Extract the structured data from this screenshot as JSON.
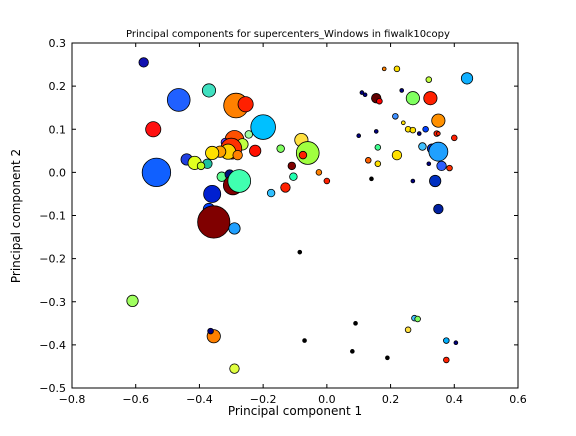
{
  "chart_data": {
    "type": "scatter",
    "title": "Principal components for supercenters_Windows in fiwalk10copy",
    "xlabel": "Principal component 1",
    "ylabel": "Principal component 2",
    "xlim": [
      -0.8,
      0.6
    ],
    "ylim": [
      -0.5,
      0.3
    ],
    "xticks": [
      "−0.8",
      "−0.6",
      "−0.4",
      "−0.2",
      "0.0",
      "0.2",
      "0.4",
      "0.6"
    ],
    "yticks": [
      "−0.5",
      "−0.4",
      "−0.3",
      "−0.2",
      "−0.1",
      "0.0",
      "0.1",
      "0.2",
      "0.3"
    ],
    "grid": false,
    "legend": "none",
    "points": [
      {
        "x": -0.575,
        "y": 0.255,
        "size": 5,
        "color": "#1010b0"
      },
      {
        "x": -0.465,
        "y": 0.168,
        "size": 12,
        "color": "#2060ff"
      },
      {
        "x": -0.37,
        "y": 0.19,
        "size": 7,
        "color": "#40e0c0"
      },
      {
        "x": -0.285,
        "y": 0.155,
        "size": 13,
        "color": "#ff8000"
      },
      {
        "x": -0.255,
        "y": 0.158,
        "size": 8,
        "color": "#ff2000"
      },
      {
        "x": -0.545,
        "y": 0.1,
        "size": 8,
        "color": "#ff1010"
      },
      {
        "x": -0.2,
        "y": 0.105,
        "size": 13,
        "color": "#00c0ff"
      },
      {
        "x": -0.245,
        "y": 0.088,
        "size": 4,
        "color": "#a0ffa0"
      },
      {
        "x": -0.29,
        "y": 0.075,
        "size": 10,
        "color": "#ff5000"
      },
      {
        "x": -0.32,
        "y": 0.07,
        "size": 4,
        "color": "#6040ff"
      },
      {
        "x": -0.265,
        "y": 0.065,
        "size": 6,
        "color": "#c0ff40"
      },
      {
        "x": -0.3,
        "y": 0.055,
        "size": 11,
        "color": "#ff3000"
      },
      {
        "x": -0.31,
        "y": 0.048,
        "size": 8,
        "color": "#ffd000"
      },
      {
        "x": -0.335,
        "y": 0.048,
        "size": 6,
        "color": "#ffa000"
      },
      {
        "x": -0.36,
        "y": 0.045,
        "size": 7,
        "color": "#ffe000"
      },
      {
        "x": -0.28,
        "y": 0.04,
        "size": 5,
        "color": "#ff8000"
      },
      {
        "x": -0.225,
        "y": 0.05,
        "size": 6,
        "color": "#ff1000"
      },
      {
        "x": -0.44,
        "y": 0.03,
        "size": 6,
        "color": "#2040e0"
      },
      {
        "x": -0.415,
        "y": 0.022,
        "size": 7,
        "color": "#e0ff20"
      },
      {
        "x": -0.375,
        "y": 0.02,
        "size": 5,
        "color": "#20c0a0"
      },
      {
        "x": -0.395,
        "y": 0.015,
        "size": 4,
        "color": "#c0ff20"
      },
      {
        "x": -0.535,
        "y": 0.0,
        "size": 15,
        "color": "#1060ff"
      },
      {
        "x": -0.33,
        "y": -0.01,
        "size": 5,
        "color": "#60ff90"
      },
      {
        "x": -0.305,
        "y": -0.005,
        "size": 5,
        "color": "#001080"
      },
      {
        "x": -0.295,
        "y": -0.03,
        "size": 10,
        "color": "#800000"
      },
      {
        "x": -0.275,
        "y": -0.02,
        "size": 12,
        "color": "#40ffb0"
      },
      {
        "x": -0.36,
        "y": -0.05,
        "size": 9,
        "color": "#0020d0"
      },
      {
        "x": -0.37,
        "y": -0.085,
        "size": 6,
        "color": "#0040ff"
      },
      {
        "x": -0.355,
        "y": -0.115,
        "size": 17,
        "color": "#800000"
      },
      {
        "x": -0.29,
        "y": -0.13,
        "size": 6,
        "color": "#20a0ff"
      },
      {
        "x": -0.08,
        "y": 0.075,
        "size": 7,
        "color": "#ffe040"
      },
      {
        "x": -0.06,
        "y": 0.045,
        "size": 12,
        "color": "#a0ff40"
      },
      {
        "x": -0.075,
        "y": 0.04,
        "size": 4,
        "color": "#ff2000"
      },
      {
        "x": -0.145,
        "y": 0.055,
        "size": 4,
        "color": "#80ff60"
      },
      {
        "x": -0.11,
        "y": 0.015,
        "size": 4,
        "color": "#800000"
      },
      {
        "x": -0.105,
        "y": -0.01,
        "size": 4,
        "color": "#20ffb0"
      },
      {
        "x": -0.13,
        "y": -0.035,
        "size": 5,
        "color": "#ff2000"
      },
      {
        "x": -0.175,
        "y": -0.048,
        "size": 4,
        "color": "#30c0ff"
      },
      {
        "x": -0.025,
        "y": 0.0,
        "size": 3,
        "color": "#ff8000"
      },
      {
        "x": 0.0,
        "y": -0.02,
        "size": 3,
        "color": "#ff2000"
      },
      {
        "x": -0.085,
        "y": -0.185,
        "size": 2,
        "color": "#000000"
      },
      {
        "x": 0.18,
        "y": 0.24,
        "size": 2,
        "color": "#ff8000"
      },
      {
        "x": 0.32,
        "y": 0.215,
        "size": 3,
        "color": "#c0ff40"
      },
      {
        "x": 0.44,
        "y": 0.218,
        "size": 6,
        "color": "#10b0ff"
      },
      {
        "x": 0.22,
        "y": 0.24,
        "size": 3,
        "color": "#ffe000"
      },
      {
        "x": 0.11,
        "y": 0.185,
        "size": 2,
        "color": "#000080"
      },
      {
        "x": 0.12,
        "y": 0.18,
        "size": 2,
        "color": "#000080"
      },
      {
        "x": 0.235,
        "y": 0.19,
        "size": 2,
        "color": "#000080"
      },
      {
        "x": 0.155,
        "y": 0.172,
        "size": 5,
        "color": "#600000"
      },
      {
        "x": 0.27,
        "y": 0.172,
        "size": 7,
        "color": "#80ff60"
      },
      {
        "x": 0.325,
        "y": 0.172,
        "size": 7,
        "color": "#ff2000"
      },
      {
        "x": 0.165,
        "y": 0.165,
        "size": 3,
        "color": "#ff0000"
      },
      {
        "x": 0.35,
        "y": 0.12,
        "size": 7,
        "color": "#ff9000"
      },
      {
        "x": 0.215,
        "y": 0.13,
        "size": 3,
        "color": "#4090ff"
      },
      {
        "x": 0.24,
        "y": 0.115,
        "size": 2,
        "color": "#ffe000"
      },
      {
        "x": 0.255,
        "y": 0.1,
        "size": 3,
        "color": "#ffe000"
      },
      {
        "x": 0.27,
        "y": 0.098,
        "size": 3,
        "color": "#ffe000"
      },
      {
        "x": 0.31,
        "y": 0.1,
        "size": 3,
        "color": "#0040ff"
      },
      {
        "x": 0.345,
        "y": 0.09,
        "size": 3,
        "color": "#ff2000"
      },
      {
        "x": 0.35,
        "y": 0.09,
        "size": 2,
        "color": "#ff2000"
      },
      {
        "x": 0.4,
        "y": 0.08,
        "size": 3,
        "color": "#ff2000"
      },
      {
        "x": 0.1,
        "y": 0.085,
        "size": 2,
        "color": "#000080"
      },
      {
        "x": 0.155,
        "y": 0.095,
        "size": 2,
        "color": "#000080"
      },
      {
        "x": 0.29,
        "y": 0.09,
        "size": 2,
        "color": "#000080"
      },
      {
        "x": 0.16,
        "y": 0.058,
        "size": 3,
        "color": "#40ff90"
      },
      {
        "x": 0.3,
        "y": 0.06,
        "size": 4,
        "color": "#40c0ff"
      },
      {
        "x": 0.33,
        "y": 0.055,
        "size": 5,
        "color": "#0030d0"
      },
      {
        "x": 0.35,
        "y": 0.048,
        "size": 10,
        "color": "#20a0ff"
      },
      {
        "x": 0.22,
        "y": 0.04,
        "size": 5,
        "color": "#ffe000"
      },
      {
        "x": 0.13,
        "y": 0.028,
        "size": 3,
        "color": "#ff6000"
      },
      {
        "x": 0.16,
        "y": 0.02,
        "size": 3,
        "color": "#ffe000"
      },
      {
        "x": 0.32,
        "y": 0.02,
        "size": 2,
        "color": "#000080"
      },
      {
        "x": 0.36,
        "y": 0.015,
        "size": 5,
        "color": "#3060ff"
      },
      {
        "x": 0.385,
        "y": 0.01,
        "size": 3,
        "color": "#ff3000"
      },
      {
        "x": 0.34,
        "y": -0.02,
        "size": 6,
        "color": "#0030c0"
      },
      {
        "x": 0.27,
        "y": -0.02,
        "size": 2,
        "color": "#000080"
      },
      {
        "x": 0.35,
        "y": -0.085,
        "size": 5,
        "color": "#0020a0"
      },
      {
        "x": 0.14,
        "y": -0.015,
        "size": 2,
        "color": "#000000"
      },
      {
        "x": 0.09,
        "y": -0.35,
        "size": 2,
        "color": "#000000"
      },
      {
        "x": -0.07,
        "y": -0.39,
        "size": 2,
        "color": "#000000"
      },
      {
        "x": 0.08,
        "y": -0.415,
        "size": 2,
        "color": "#000000"
      },
      {
        "x": 0.19,
        "y": -0.43,
        "size": 2,
        "color": "#000000"
      },
      {
        "x": 0.275,
        "y": -0.338,
        "size": 3,
        "color": "#40c0ff"
      },
      {
        "x": 0.285,
        "y": -0.34,
        "size": 3,
        "color": "#80ff60"
      },
      {
        "x": 0.255,
        "y": -0.365,
        "size": 3,
        "color": "#ffe040"
      },
      {
        "x": 0.375,
        "y": -0.39,
        "size": 3,
        "color": "#00b0ff"
      },
      {
        "x": 0.405,
        "y": -0.395,
        "size": 2,
        "color": "#000080"
      },
      {
        "x": 0.375,
        "y": -0.435,
        "size": 3,
        "color": "#ff2000"
      },
      {
        "x": -0.61,
        "y": -0.298,
        "size": 6,
        "color": "#a0ff60"
      },
      {
        "x": -0.355,
        "y": -0.38,
        "size": 7,
        "color": "#ff8000"
      },
      {
        "x": -0.365,
        "y": -0.368,
        "size": 3,
        "color": "#000080"
      },
      {
        "x": -0.29,
        "y": -0.455,
        "size": 5,
        "color": "#e0ff40"
      }
    ]
  }
}
